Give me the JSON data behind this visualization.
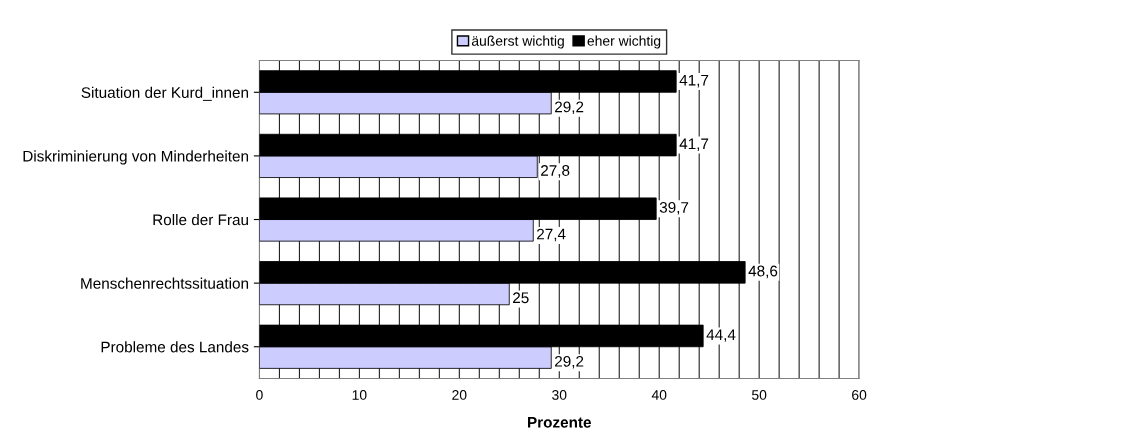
{
  "chart_data": {
    "type": "bar",
    "orientation": "horizontal",
    "xlabel": "Prozente",
    "categories": [
      "Situation der Kurd_innen",
      "Diskriminierung von Minderheiten",
      "Rolle der Frau",
      "Menschenrechtssituation",
      "Probleme des Landes"
    ],
    "series": [
      {
        "name": "äußerst wichtig",
        "color": "#ccccff",
        "values": [
          29.2,
          27.8,
          27.4,
          25,
          29.2
        ],
        "value_labels": [
          "29,2",
          "27,8",
          "27,4",
          "25",
          "29,2"
        ]
      },
      {
        "name": "eher wichtig",
        "color": "#000000",
        "values": [
          41.7,
          41.7,
          39.7,
          48.6,
          44.4
        ],
        "value_labels": [
          "41,7",
          "41,7",
          "39,7",
          "48,6",
          "44,4"
        ]
      }
    ],
    "xlim": [
      0,
      60
    ],
    "xticks": [
      0,
      {
        "value": 2,
        "label": null
      },
      {
        "value": 4,
        "label": null
      },
      {
        "value": 6,
        "label": null
      },
      {
        "value": 8,
        "label": null
      },
      10,
      {
        "value": 12,
        "label": null
      },
      {
        "value": 14,
        "label": null
      },
      {
        "value": 16,
        "label": null
      },
      {
        "value": 18,
        "label": null
      },
      20,
      {
        "value": 22,
        "label": null
      },
      {
        "value": 24,
        "label": null
      },
      {
        "value": 26,
        "label": null
      },
      {
        "value": 28,
        "label": null
      },
      30,
      {
        "value": 32,
        "label": null
      },
      {
        "value": 34,
        "label": null
      },
      {
        "value": 36,
        "label": null
      },
      {
        "value": 38,
        "label": null
      },
      40,
      {
        "value": 42,
        "label": null
      },
      {
        "value": 44,
        "label": null
      },
      {
        "value": 46,
        "label": null
      },
      {
        "value": 48,
        "label": null
      },
      50,
      {
        "value": 52,
        "label": null
      },
      {
        "value": 54,
        "label": null
      },
      {
        "value": 56,
        "label": null
      },
      {
        "value": 58,
        "label": null
      },
      60
    ],
    "grid": "x",
    "legend": "top"
  }
}
